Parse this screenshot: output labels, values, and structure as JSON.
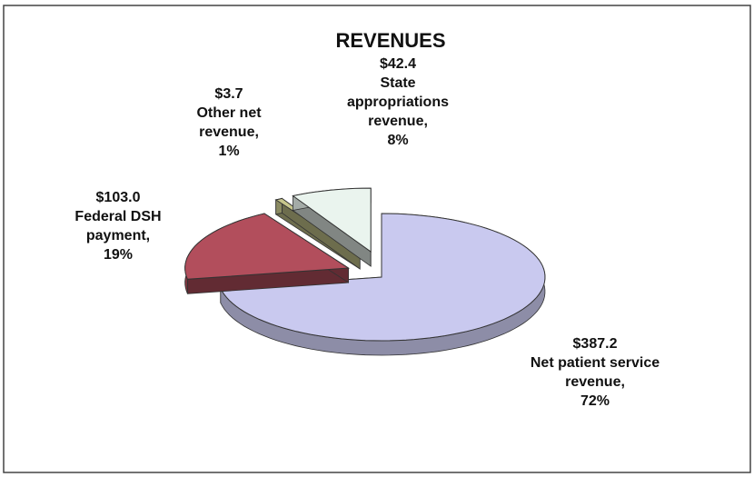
{
  "chart_data": {
    "type": "pie",
    "title": "REVENUES",
    "categories": [
      "Net patient service revenue,",
      "Federal DSH payment,",
      "Other net revenue,",
      "State appropriations revenue,"
    ],
    "values": [
      387.2,
      103.0,
      3.7,
      42.4
    ],
    "value_labels": [
      "$387.2",
      "$103.0",
      "$3.7",
      "$42.4"
    ],
    "percents": [
      72,
      19,
      1,
      8
    ],
    "percent_labels": [
      "72%",
      "19%",
      "1%",
      "8%"
    ],
    "colors": [
      "#c9c9ef",
      "#b24e5c",
      "#c7c68c",
      "#eaf4ee"
    ],
    "three_d": true,
    "exploded": true
  }
}
